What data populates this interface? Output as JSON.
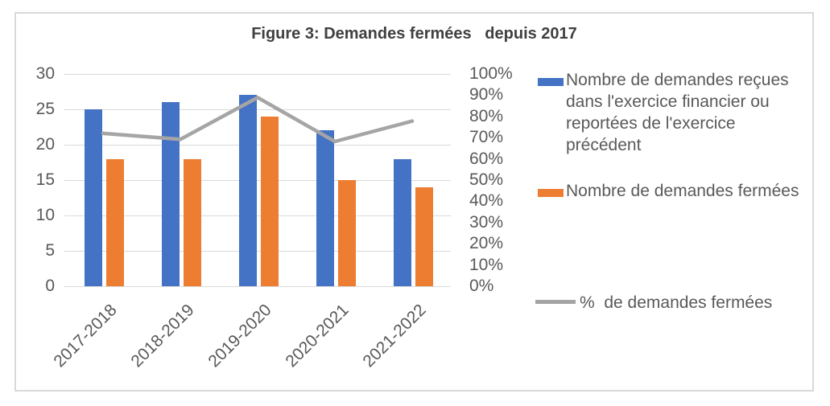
{
  "title": "Figure 3: Demandes fermées   depuis 2017",
  "chart_data": {
    "type": "bar+line",
    "title": "Figure 3: Demandes fermées depuis 2017",
    "categories": [
      "2017-2018",
      "2018-2019",
      "2019-2020",
      "2020-2021",
      "2021-2022"
    ],
    "series": [
      {
        "name": "Nombre de demandes reçues dans l'exercice financier ou reportées de l'exercice précédent",
        "type": "bar",
        "axis": "left",
        "color": "#4472C4",
        "values": [
          25,
          26,
          27,
          22,
          18
        ]
      },
      {
        "name": "Nombre de demandes fermées",
        "type": "bar",
        "axis": "left",
        "color": "#ED7D31",
        "values": [
          18,
          18,
          24,
          15,
          14
        ]
      },
      {
        "name": "%  de demandes fermées",
        "type": "line",
        "axis": "right",
        "color": "#A5A5A5",
        "values": [
          72,
          69.2,
          88.9,
          68.2,
          77.8
        ]
      }
    ],
    "left_axis": {
      "min": 0,
      "max": 30,
      "step": 5,
      "ticks": [
        "0",
        "5",
        "10",
        "15",
        "20",
        "25",
        "30"
      ]
    },
    "right_axis": {
      "min": 0,
      "max": 100,
      "step": 10,
      "ticks": [
        "0%",
        "10%",
        "20%",
        "30%",
        "40%",
        "50%",
        "60%",
        "70%",
        "80%",
        "90%",
        "100%"
      ]
    },
    "grid": true,
    "legend_position": "right"
  },
  "legend": {
    "items": [
      {
        "label": "Nombre de demandes reçues dans l'exercice financier ou reportées de l'exercice précédent",
        "swatch": "bar",
        "color": "#4472C4"
      },
      {
        "label": "Nombre de demandes fermées",
        "swatch": "bar",
        "color": "#ED7D31"
      },
      {
        "label": "%  de demandes fermées",
        "swatch": "line",
        "color": "#A5A5A5"
      }
    ]
  },
  "colors": {
    "background": "#FFFFFF",
    "border": "#D9D9D9",
    "grid": "#D9D9D9",
    "axis_text": "#595959",
    "title_text": "#404040",
    "bar_blue": "#4472C4",
    "bar_orange": "#ED7D31",
    "line_gray": "#A5A5A5"
  }
}
